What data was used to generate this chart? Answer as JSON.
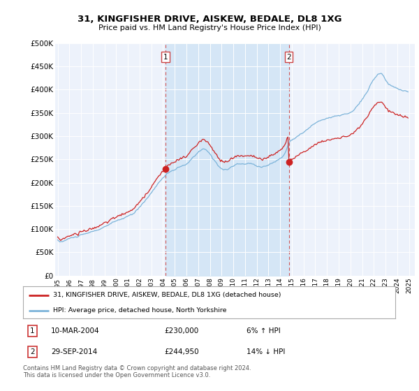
{
  "title": "31, KINGFISHER DRIVE, AISKEW, BEDALE, DL8 1XG",
  "subtitle": "Price paid vs. HM Land Registry's House Price Index (HPI)",
  "ylabel_ticks": [
    "£0",
    "£50K",
    "£100K",
    "£150K",
    "£200K",
    "£250K",
    "£300K",
    "£350K",
    "£400K",
    "£450K",
    "£500K"
  ],
  "ytick_vals": [
    0,
    50000,
    100000,
    150000,
    200000,
    250000,
    300000,
    350000,
    400000,
    450000,
    500000
  ],
  "ylim": [
    0,
    500000
  ],
  "xlim_start": 1994.8,
  "xlim_end": 2025.5,
  "xtick_years": [
    1995,
    1996,
    1997,
    1998,
    1999,
    2000,
    2001,
    2002,
    2003,
    2004,
    2005,
    2006,
    2007,
    2008,
    2009,
    2010,
    2011,
    2012,
    2013,
    2014,
    2015,
    2016,
    2017,
    2018,
    2019,
    2020,
    2021,
    2022,
    2023,
    2024,
    2025
  ],
  "hpi_color": "#7bb3d9",
  "sale_color": "#cc2222",
  "vline_color": "#cc4444",
  "background_color": "#ffffff",
  "plot_bg_color": "#edf2fb",
  "shade_color": "#d0e4f5",
  "sale1_x": 2004.19,
  "sale1_y": 230000,
  "sale2_x": 2014.74,
  "sale2_y": 244950,
  "legend_line1": "31, KINGFISHER DRIVE, AISKEW, BEDALE, DL8 1XG (detached house)",
  "legend_line2": "HPI: Average price, detached house, North Yorkshire",
  "table_entries": [
    {
      "num": "1",
      "date": "10-MAR-2004",
      "price": "£230,000",
      "hpi": "6% ↑ HPI"
    },
    {
      "num": "2",
      "date": "29-SEP-2014",
      "price": "£244,950",
      "hpi": "14% ↓ HPI"
    }
  ],
  "footnote": "Contains HM Land Registry data © Crown copyright and database right 2024.\nThis data is licensed under the Open Government Licence v3.0."
}
